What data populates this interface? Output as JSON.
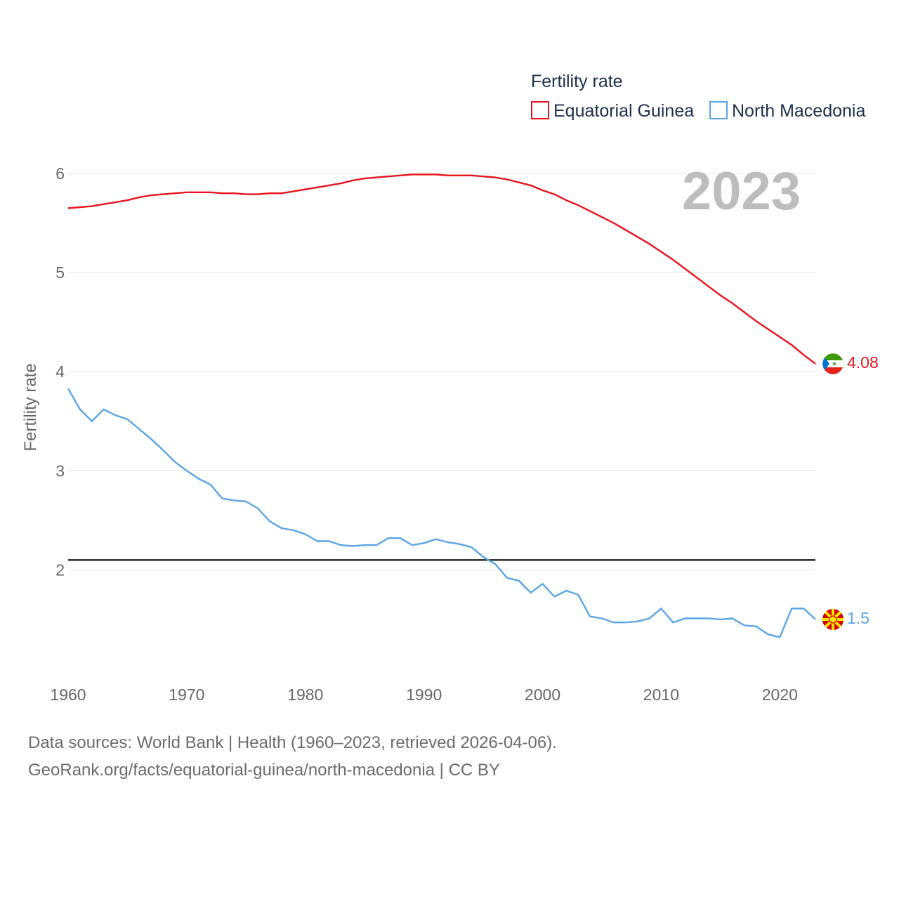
{
  "chart_data": {
    "type": "line",
    "title": "",
    "ylabel": "Fertility rate",
    "xlabel": "",
    "year_label": "2023",
    "xlim": [
      1960,
      2023
    ],
    "ylim": [
      1.0,
      6.3
    ],
    "x_ticks": [
      1960,
      1970,
      1980,
      1990,
      2000,
      2010,
      2020
    ],
    "y_ticks": [
      2,
      3,
      4,
      5,
      6
    ],
    "legend": {
      "title": "Fertility rate",
      "placement": "top-right"
    },
    "reference_line": {
      "value": 2.1,
      "color": "#000000"
    },
    "x": [
      1960,
      1961,
      1962,
      1963,
      1964,
      1965,
      1966,
      1967,
      1968,
      1969,
      1970,
      1971,
      1972,
      1973,
      1974,
      1975,
      1976,
      1977,
      1978,
      1979,
      1980,
      1981,
      1982,
      1983,
      1984,
      1985,
      1986,
      1987,
      1988,
      1989,
      1990,
      1991,
      1992,
      1993,
      1994,
      1995,
      1996,
      1997,
      1998,
      1999,
      2000,
      2001,
      2002,
      2003,
      2004,
      2005,
      2006,
      2007,
      2008,
      2009,
      2010,
      2011,
      2012,
      2013,
      2014,
      2015,
      2016,
      2017,
      2018,
      2019,
      2020,
      2021,
      2022,
      2023
    ],
    "series": [
      {
        "name": "Equatorial Guinea",
        "color": "#e8141e",
        "end_value": "4.08",
        "values": [
          5.65,
          5.66,
          5.67,
          5.69,
          5.71,
          5.73,
          5.76,
          5.78,
          5.79,
          5.8,
          5.81,
          5.81,
          5.81,
          5.8,
          5.8,
          5.79,
          5.79,
          5.8,
          5.8,
          5.82,
          5.84,
          5.86,
          5.88,
          5.9,
          5.93,
          5.95,
          5.96,
          5.97,
          5.98,
          5.99,
          5.99,
          5.99,
          5.98,
          5.98,
          5.98,
          5.97,
          5.96,
          5.94,
          5.91,
          5.88,
          5.83,
          5.79,
          5.73,
          5.68,
          5.62,
          5.56,
          5.5,
          5.43,
          5.36,
          5.29,
          5.21,
          5.13,
          5.04,
          4.95,
          4.86,
          4.77,
          4.69,
          4.6,
          4.51,
          4.43,
          4.35,
          4.27,
          4.17,
          4.08
        ]
      },
      {
        "name": "North Macedonia",
        "color": "#5aa5e6",
        "end_value": "1.5",
        "values": [
          3.83,
          3.62,
          3.5,
          3.62,
          3.56,
          3.52,
          3.42,
          3.32,
          3.21,
          3.09,
          3.0,
          2.92,
          2.86,
          2.72,
          2.7,
          2.69,
          2.62,
          2.49,
          2.42,
          2.4,
          2.36,
          2.29,
          2.29,
          2.25,
          2.24,
          2.25,
          2.25,
          2.32,
          2.32,
          2.25,
          2.27,
          2.31,
          2.28,
          2.26,
          2.23,
          2.13,
          2.06,
          1.92,
          1.89,
          1.77,
          1.86,
          1.73,
          1.79,
          1.75,
          1.53,
          1.51,
          1.47,
          1.47,
          1.48,
          1.51,
          1.61,
          1.47,
          1.51,
          1.51,
          1.51,
          1.5,
          1.51,
          1.44,
          1.43,
          1.35,
          1.32,
          1.61,
          1.61,
          1.5
        ]
      }
    ]
  },
  "footer": {
    "line1": "Data sources: World Bank | Health (1960–2023, retrieved 2026-04-06).",
    "line2": "GeoRank.org/facts/equatorial-guinea/north-macedonia | CC BY"
  }
}
